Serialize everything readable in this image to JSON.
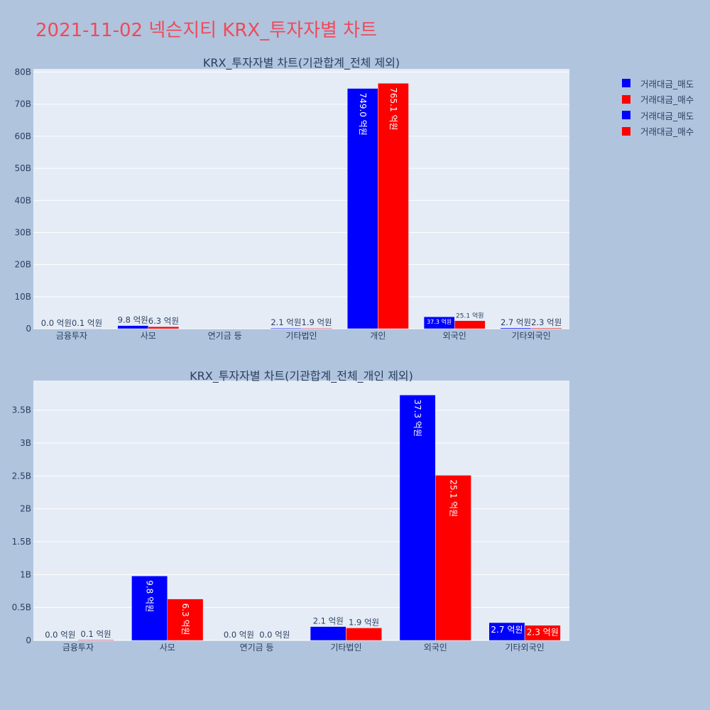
{
  "page_title": "2021-11-02 넥슨지티 KRX_투자자별 차트",
  "legend": [
    {
      "label": "거래대금_매도",
      "color": "#0000ff"
    },
    {
      "label": "거래대금_매수",
      "color": "#ff0000"
    },
    {
      "label": "거래대금_매도",
      "color": "#0000ff"
    },
    {
      "label": "거래대금_매수",
      "color": "#ff0000"
    }
  ],
  "chart_data": [
    {
      "type": "bar",
      "title": "KRX_투자자별 차트(기관합계_전체 제외)",
      "categories": [
        "금융투자",
        "사모",
        "연기금 등",
        "기타법인",
        "개인",
        "외국인",
        "기타외국인"
      ],
      "series": [
        {
          "name": "거래대금_매도",
          "color": "#0000ff",
          "values": [
            0,
            980000000,
            0,
            210000000,
            74900000000,
            3730000000,
            270000000
          ],
          "labels": [
            "0.0 억원",
            "9.8 억원",
            "",
            "2.1 억원",
            "749.0 억원",
            "37.3 억원",
            "2.7 억원"
          ]
        },
        {
          "name": "거래대금_매수",
          "color": "#ff0000",
          "values": [
            10000000,
            630000000,
            0,
            190000000,
            76510000000,
            2510000000,
            230000000
          ],
          "labels": [
            "0.1 억원",
            "6.3 억원",
            "",
            "1.9 억원",
            "765.1 억원",
            "25.1 억원",
            "2.3 억원"
          ]
        }
      ],
      "ylim": [
        0,
        81000000000
      ],
      "yticks": [
        0,
        10000000000,
        20000000000,
        30000000000,
        40000000000,
        50000000000,
        60000000000,
        70000000000,
        80000000000
      ],
      "ytick_labels": [
        "0",
        "10B",
        "20B",
        "30B",
        "40B",
        "50B",
        "60B",
        "70B",
        "80B"
      ],
      "grid": true
    },
    {
      "type": "bar",
      "title": "KRX_투자자별 차트(기관합계_전체_개인 제외)",
      "categories": [
        "금융투자",
        "사모",
        "연기금 등",
        "기타법인",
        "외국인",
        "기타외국인"
      ],
      "series": [
        {
          "name": "거래대금_매도",
          "color": "#0000ff",
          "values": [
            0,
            980000000,
            0,
            210000000,
            3730000000,
            270000000
          ],
          "labels": [
            "0.0 억원",
            "9.8 억원",
            "0.0 억원",
            "2.1 억원",
            "37.3 억원",
            "2.7 억원"
          ]
        },
        {
          "name": "거래대금_매수",
          "color": "#ff0000",
          "values": [
            10000000,
            630000000,
            0,
            190000000,
            2510000000,
            230000000
          ],
          "labels": [
            "0.1 억원",
            "6.3 억원",
            "0.0 억원",
            "1.9 억원",
            "25.1 억원",
            "2.3 억원"
          ]
        }
      ],
      "ylim": [
        0,
        3950000000
      ],
      "yticks": [
        0,
        500000000,
        1000000000,
        1500000000,
        2000000000,
        2500000000,
        3000000000,
        3500000000
      ],
      "ytick_labels": [
        "0",
        "0.5B",
        "1B",
        "1.5B",
        "2B",
        "2.5B",
        "3B",
        "3.5B"
      ],
      "grid": true
    }
  ]
}
